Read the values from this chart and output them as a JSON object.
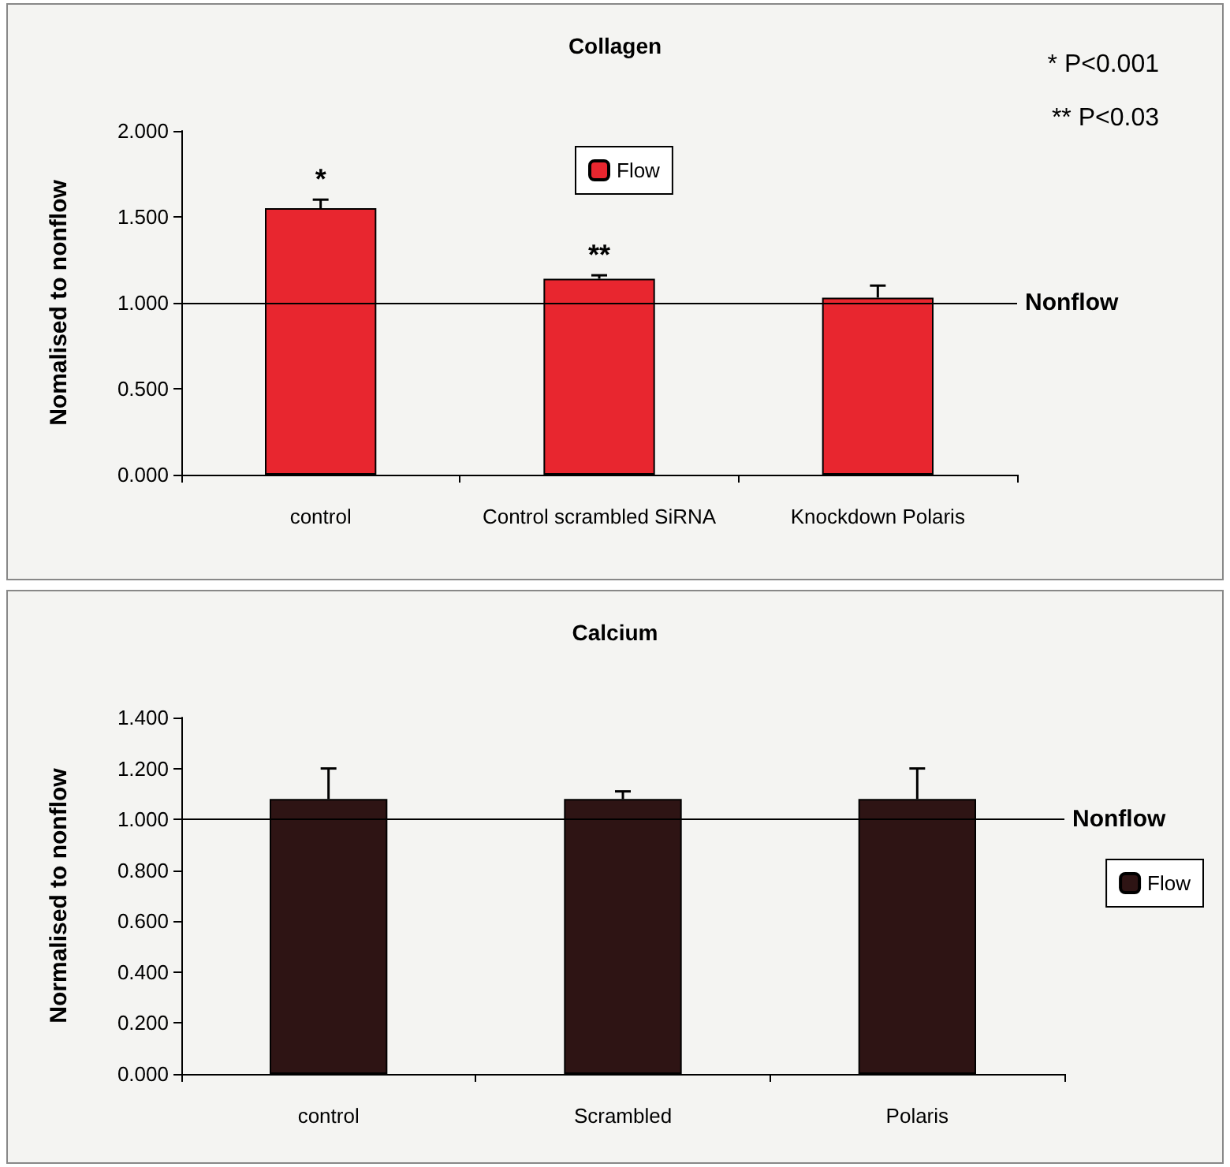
{
  "chart_data": [
    {
      "type": "bar",
      "title": "Collagen",
      "ylabel": "Nomalised to nonflow",
      "categories": [
        "control",
        "Control scrambled SiRNA",
        "Knockdown Polaris"
      ],
      "series": [
        {
          "name": "Flow",
          "color": "#e8262f",
          "values": [
            1.55,
            1.14,
            1.03
          ],
          "errors": [
            [
              1.55,
              1.6
            ],
            [
              1.14,
              1.16
            ],
            [
              1.03,
              1.1
            ]
          ]
        }
      ],
      "ylim": [
        0,
        2
      ],
      "yticks": [
        {
          "value": 0,
          "label": "0.000"
        },
        {
          "value": 0.5,
          "label": "0.500"
        },
        {
          "value": 1,
          "label": "1.000"
        },
        {
          "value": 1.5,
          "label": "1.500"
        },
        {
          "value": 2,
          "label": "2.000"
        }
      ],
      "ref_lines": [
        {
          "axis": "y",
          "value": 1,
          "label": "Nonflow",
          "color": "#000000"
        }
      ],
      "annotations": [
        {
          "text": "*",
          "x": "control",
          "y": 1.6
        },
        {
          "text": "**",
          "x": "Control scrambled SiRNA",
          "y": 1.16
        },
        "* P<0.001",
        "** P<0.03"
      ],
      "legend": "top",
      "grid": false
    },
    {
      "type": "bar",
      "title": "Calcium",
      "ylabel": "Normalised to nonflow",
      "categories": [
        "control",
        "Scrambled",
        "Polaris"
      ],
      "series": [
        {
          "name": "Flow",
          "color": "#2e1414",
          "values": [
            1.08,
            1.08,
            1.08
          ],
          "errors": [
            [
              1.08,
              1.2
            ],
            [
              1.08,
              1.11
            ],
            [
              1.08,
              1.2
            ]
          ]
        }
      ],
      "ylim": [
        0,
        1.4
      ],
      "yticks": [
        {
          "value": 0,
          "label": "0.000"
        },
        {
          "value": 0.2,
          "label": "0.200"
        },
        {
          "value": 0.4,
          "label": "0.400"
        },
        {
          "value": 0.6,
          "label": "0.600"
        },
        {
          "value": 0.8,
          "label": "0.800"
        },
        {
          "value": 1,
          "label": "1.000"
        },
        {
          "value": 1.2,
          "label": "1.200"
        },
        {
          "value": 1.4,
          "label": "1.400"
        }
      ],
      "ref_lines": [
        {
          "axis": "y",
          "value": 1,
          "label": "Nonflow",
          "color": "#000000"
        }
      ],
      "legend": "right",
      "grid": false
    }
  ]
}
